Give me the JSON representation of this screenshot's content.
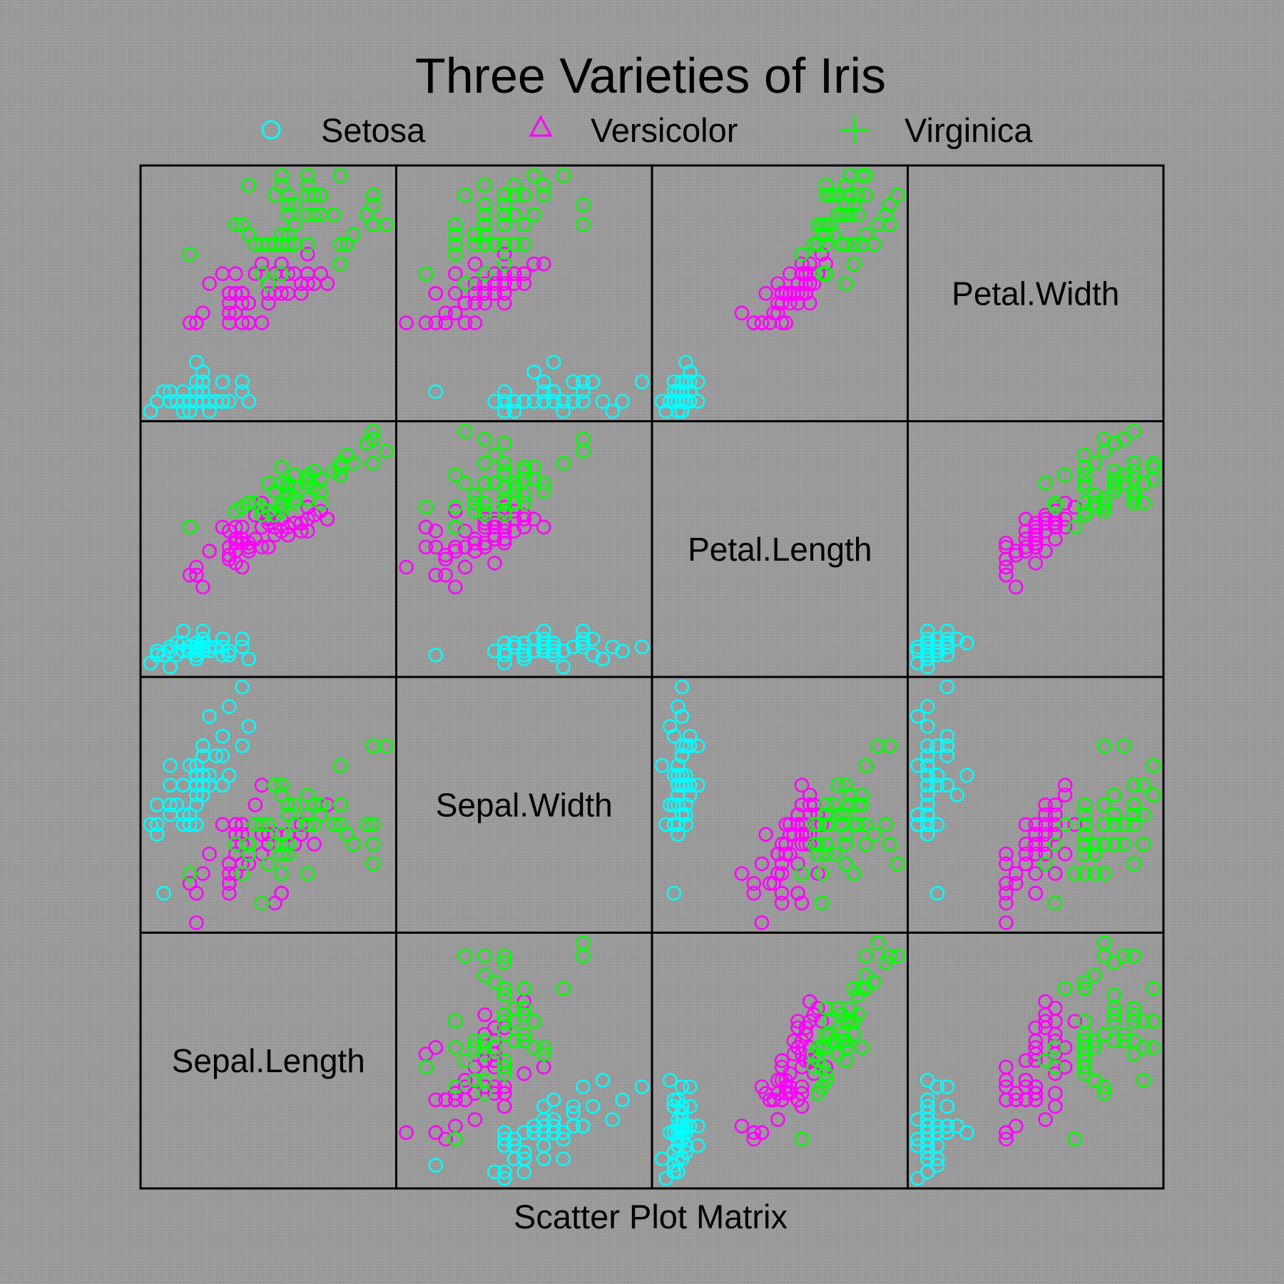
{
  "chart_data": {
    "type": "scatter",
    "title": "Three Varieties of Iris",
    "xlabel": "Scatter Plot Matrix",
    "legend": {
      "placement": "top",
      "items": [
        {
          "label": "Setosa",
          "symbol": "circle",
          "color": "#00ffff"
        },
        {
          "label": "Versicolor",
          "symbol": "triangle",
          "color": "#ff00ff"
        },
        {
          "label": "Virginica",
          "symbol": "plus",
          "color": "#00ff00"
        }
      ]
    },
    "variables": [
      "Sepal.Length",
      "Sepal.Width",
      "Petal.Length",
      "Petal.Width"
    ],
    "ranges": {
      "Sepal.Length": [
        4.3,
        7.9
      ],
      "Sepal.Width": [
        2.0,
        4.4
      ],
      "Petal.Length": [
        1.0,
        6.9
      ],
      "Petal.Width": [
        0.1,
        2.5
      ]
    },
    "grid": false,
    "background": "#9a9a9a",
    "series": [
      {
        "name": "Setosa",
        "color": "#00ffff",
        "points": [
          [
            5.1,
            3.5,
            1.4,
            0.2
          ],
          [
            4.9,
            3.0,
            1.4,
            0.2
          ],
          [
            4.7,
            3.2,
            1.3,
            0.2
          ],
          [
            4.6,
            3.1,
            1.5,
            0.2
          ],
          [
            5.0,
            3.6,
            1.4,
            0.2
          ],
          [
            5.4,
            3.9,
            1.7,
            0.4
          ],
          [
            4.6,
            3.4,
            1.4,
            0.3
          ],
          [
            5.0,
            3.4,
            1.5,
            0.2
          ],
          [
            4.4,
            2.9,
            1.4,
            0.2
          ],
          [
            4.9,
            3.1,
            1.5,
            0.1
          ],
          [
            5.4,
            3.7,
            1.5,
            0.2
          ],
          [
            4.8,
            3.4,
            1.6,
            0.2
          ],
          [
            4.8,
            3.0,
            1.4,
            0.1
          ],
          [
            4.3,
            3.0,
            1.1,
            0.1
          ],
          [
            5.8,
            4.0,
            1.2,
            0.2
          ],
          [
            5.7,
            4.4,
            1.5,
            0.4
          ],
          [
            5.4,
            3.9,
            1.3,
            0.4
          ],
          [
            5.1,
            3.5,
            1.4,
            0.3
          ],
          [
            5.7,
            3.8,
            1.7,
            0.3
          ],
          [
            5.1,
            3.8,
            1.5,
            0.3
          ],
          [
            5.4,
            3.4,
            1.7,
            0.2
          ],
          [
            5.1,
            3.7,
            1.5,
            0.4
          ],
          [
            4.6,
            3.6,
            1.0,
            0.2
          ],
          [
            5.1,
            3.3,
            1.7,
            0.5
          ],
          [
            4.8,
            3.4,
            1.9,
            0.2
          ],
          [
            5.0,
            3.0,
            1.6,
            0.2
          ],
          [
            5.0,
            3.4,
            1.6,
            0.4
          ],
          [
            5.2,
            3.5,
            1.5,
            0.2
          ],
          [
            5.2,
            3.4,
            1.4,
            0.2
          ],
          [
            4.7,
            3.2,
            1.6,
            0.2
          ],
          [
            4.8,
            3.1,
            1.6,
            0.2
          ],
          [
            5.4,
            3.4,
            1.5,
            0.4
          ],
          [
            5.2,
            4.1,
            1.5,
            0.1
          ],
          [
            5.5,
            4.2,
            1.4,
            0.2
          ],
          [
            4.9,
            3.1,
            1.5,
            0.2
          ],
          [
            5.0,
            3.2,
            1.2,
            0.2
          ],
          [
            5.5,
            3.5,
            1.3,
            0.2
          ],
          [
            4.9,
            3.6,
            1.4,
            0.1
          ],
          [
            4.4,
            3.0,
            1.3,
            0.2
          ],
          [
            5.1,
            3.4,
            1.5,
            0.2
          ],
          [
            5.0,
            3.5,
            1.3,
            0.3
          ],
          [
            4.5,
            2.3,
            1.3,
            0.3
          ],
          [
            4.4,
            3.2,
            1.3,
            0.2
          ],
          [
            5.0,
            3.5,
            1.6,
            0.6
          ],
          [
            5.1,
            3.8,
            1.9,
            0.4
          ],
          [
            4.8,
            3.0,
            1.4,
            0.3
          ],
          [
            5.1,
            3.8,
            1.6,
            0.2
          ],
          [
            4.6,
            3.2,
            1.4,
            0.2
          ],
          [
            5.3,
            3.7,
            1.5,
            0.2
          ],
          [
            5.0,
            3.3,
            1.4,
            0.2
          ]
        ]
      },
      {
        "name": "Versicolor",
        "color": "#ff00ff",
        "points": [
          [
            7.0,
            3.2,
            4.7,
            1.4
          ],
          [
            6.4,
            3.2,
            4.5,
            1.5
          ],
          [
            6.9,
            3.1,
            4.9,
            1.5
          ],
          [
            5.5,
            2.3,
            4.0,
            1.3
          ],
          [
            6.5,
            2.8,
            4.6,
            1.5
          ],
          [
            5.7,
            2.8,
            4.5,
            1.3
          ],
          [
            6.3,
            3.3,
            4.7,
            1.6
          ],
          [
            4.9,
            2.4,
            3.3,
            1.0
          ],
          [
            6.6,
            2.9,
            4.6,
            1.3
          ],
          [
            5.2,
            2.7,
            3.9,
            1.4
          ],
          [
            5.0,
            2.0,
            3.5,
            1.0
          ],
          [
            5.9,
            3.0,
            4.2,
            1.5
          ],
          [
            6.0,
            2.2,
            4.0,
            1.0
          ],
          [
            6.1,
            2.9,
            4.7,
            1.4
          ],
          [
            5.6,
            2.9,
            3.6,
            1.3
          ],
          [
            6.7,
            3.1,
            4.4,
            1.4
          ],
          [
            5.6,
            3.0,
            4.5,
            1.5
          ],
          [
            5.8,
            2.7,
            4.1,
            1.0
          ],
          [
            6.2,
            2.2,
            4.5,
            1.5
          ],
          [
            5.6,
            2.5,
            3.9,
            1.1
          ],
          [
            5.9,
            3.2,
            4.8,
            1.8
          ],
          [
            6.1,
            2.8,
            4.0,
            1.3
          ],
          [
            6.3,
            2.5,
            4.9,
            1.5
          ],
          [
            6.1,
            2.8,
            4.7,
            1.2
          ],
          [
            6.4,
            2.9,
            4.3,
            1.3
          ],
          [
            6.6,
            3.0,
            4.4,
            1.4
          ],
          [
            6.8,
            2.8,
            4.8,
            1.4
          ],
          [
            6.7,
            3.0,
            5.0,
            1.7
          ],
          [
            6.0,
            2.9,
            4.5,
            1.5
          ],
          [
            5.7,
            2.6,
            3.5,
            1.0
          ],
          [
            5.5,
            2.4,
            3.8,
            1.1
          ],
          [
            5.5,
            2.4,
            3.7,
            1.0
          ],
          [
            5.8,
            2.7,
            3.9,
            1.2
          ],
          [
            6.0,
            2.7,
            5.1,
            1.6
          ],
          [
            5.4,
            3.0,
            4.5,
            1.5
          ],
          [
            6.0,
            3.4,
            4.5,
            1.6
          ],
          [
            6.7,
            3.1,
            4.7,
            1.5
          ],
          [
            6.3,
            2.3,
            4.4,
            1.3
          ],
          [
            5.6,
            3.0,
            4.1,
            1.3
          ],
          [
            5.5,
            2.5,
            4.0,
            1.3
          ],
          [
            5.5,
            2.6,
            4.4,
            1.2
          ],
          [
            6.1,
            3.0,
            4.6,
            1.4
          ],
          [
            5.8,
            2.6,
            4.0,
            1.2
          ],
          [
            5.0,
            2.3,
            3.3,
            1.0
          ],
          [
            5.6,
            2.7,
            4.2,
            1.3
          ],
          [
            5.7,
            3.0,
            4.2,
            1.2
          ],
          [
            5.7,
            2.9,
            4.2,
            1.3
          ],
          [
            6.2,
            2.9,
            4.3,
            1.3
          ],
          [
            5.1,
            2.5,
            3.0,
            1.1
          ],
          [
            5.7,
            2.8,
            4.1,
            1.3
          ]
        ]
      },
      {
        "name": "Virginica",
        "color": "#00ff00",
        "points": [
          [
            6.3,
            3.3,
            6.0,
            2.5
          ],
          [
            5.8,
            2.7,
            5.1,
            1.9
          ],
          [
            7.1,
            3.0,
            5.9,
            2.1
          ],
          [
            6.3,
            2.9,
            5.6,
            1.8
          ],
          [
            6.5,
            3.0,
            5.8,
            2.2
          ],
          [
            7.6,
            3.0,
            6.6,
            2.1
          ],
          [
            4.9,
            2.5,
            4.5,
            1.7
          ],
          [
            7.3,
            2.9,
            6.3,
            1.8
          ],
          [
            6.7,
            2.5,
            5.8,
            1.8
          ],
          [
            7.2,
            3.6,
            6.1,
            2.5
          ],
          [
            6.5,
            3.2,
            5.1,
            2.0
          ],
          [
            6.4,
            2.7,
            5.3,
            1.9
          ],
          [
            6.8,
            3.0,
            5.5,
            2.1
          ],
          [
            5.7,
            2.5,
            5.0,
            2.0
          ],
          [
            5.8,
            2.8,
            5.1,
            2.4
          ],
          [
            6.4,
            3.2,
            5.3,
            2.3
          ],
          [
            6.5,
            3.0,
            5.5,
            1.8
          ],
          [
            7.7,
            3.8,
            6.7,
            2.2
          ],
          [
            7.7,
            2.6,
            6.9,
            2.3
          ],
          [
            6.0,
            2.2,
            5.0,
            1.5
          ],
          [
            6.9,
            3.2,
            5.7,
            2.3
          ],
          [
            5.6,
            2.8,
            4.9,
            2.0
          ],
          [
            7.7,
            2.8,
            6.7,
            2.0
          ],
          [
            6.3,
            2.7,
            4.9,
            1.8
          ],
          [
            6.7,
            3.3,
            5.7,
            2.1
          ],
          [
            7.2,
            3.2,
            6.0,
            1.8
          ],
          [
            6.2,
            2.8,
            4.8,
            1.8
          ],
          [
            6.1,
            3.0,
            4.9,
            1.8
          ],
          [
            6.4,
            2.8,
            5.6,
            2.1
          ],
          [
            7.2,
            3.0,
            5.8,
            1.6
          ],
          [
            7.4,
            2.8,
            6.1,
            1.9
          ],
          [
            7.9,
            3.8,
            6.4,
            2.0
          ],
          [
            6.4,
            2.8,
            5.6,
            2.2
          ],
          [
            6.3,
            2.8,
            5.1,
            1.5
          ],
          [
            6.1,
            2.6,
            5.6,
            1.4
          ],
          [
            7.7,
            3.0,
            6.1,
            2.3
          ],
          [
            6.3,
            3.4,
            5.6,
            2.4
          ],
          [
            6.4,
            3.1,
            5.5,
            1.8
          ],
          [
            6.0,
            3.0,
            4.8,
            1.8
          ],
          [
            6.9,
            3.1,
            5.4,
            2.1
          ],
          [
            6.7,
            3.1,
            5.6,
            2.4
          ],
          [
            6.9,
            3.1,
            5.1,
            2.3
          ],
          [
            5.8,
            2.7,
            5.1,
            1.9
          ],
          [
            6.8,
            3.2,
            5.9,
            2.3
          ],
          [
            6.7,
            3.3,
            5.7,
            2.5
          ],
          [
            6.7,
            3.0,
            5.2,
            2.3
          ],
          [
            6.3,
            2.5,
            5.0,
            1.9
          ],
          [
            6.5,
            3.0,
            5.2,
            2.0
          ],
          [
            6.2,
            3.4,
            5.4,
            2.3
          ],
          [
            5.9,
            3.0,
            5.1,
            1.8
          ]
        ]
      }
    ]
  }
}
